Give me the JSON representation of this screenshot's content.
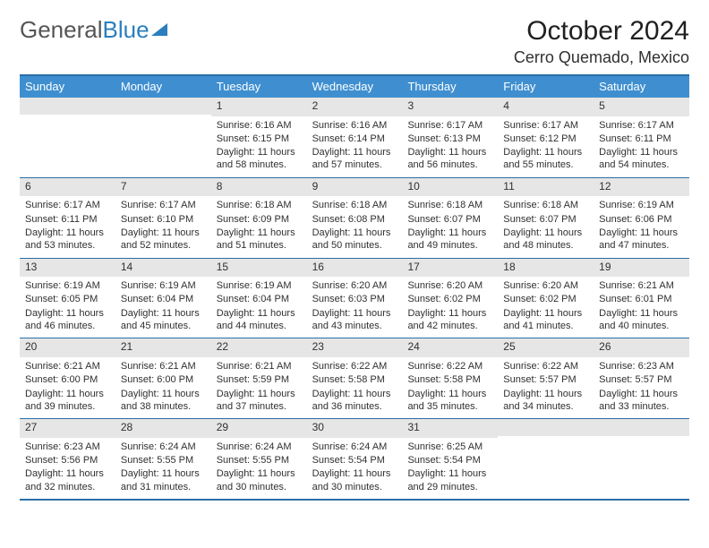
{
  "logo": {
    "part1": "General",
    "part2": "Blue"
  },
  "title": "October 2024",
  "location": "Cerro Quemado, Mexico",
  "colors": {
    "header_bg": "#3f8fd0",
    "border": "#2a6ea8",
    "daynum_bg": "#e6e6e6",
    "text": "#303030"
  },
  "fonts": {
    "title_size": 30,
    "location_size": 18,
    "header_size": 13,
    "body_size": 11
  },
  "dow": [
    "Sunday",
    "Monday",
    "Tuesday",
    "Wednesday",
    "Thursday",
    "Friday",
    "Saturday"
  ],
  "weeks": [
    [
      null,
      null,
      {
        "n": "1",
        "sr": "Sunrise: 6:16 AM",
        "ss": "Sunset: 6:15 PM",
        "dl": "Daylight: 11 hours and 58 minutes."
      },
      {
        "n": "2",
        "sr": "Sunrise: 6:16 AM",
        "ss": "Sunset: 6:14 PM",
        "dl": "Daylight: 11 hours and 57 minutes."
      },
      {
        "n": "3",
        "sr": "Sunrise: 6:17 AM",
        "ss": "Sunset: 6:13 PM",
        "dl": "Daylight: 11 hours and 56 minutes."
      },
      {
        "n": "4",
        "sr": "Sunrise: 6:17 AM",
        "ss": "Sunset: 6:12 PM",
        "dl": "Daylight: 11 hours and 55 minutes."
      },
      {
        "n": "5",
        "sr": "Sunrise: 6:17 AM",
        "ss": "Sunset: 6:11 PM",
        "dl": "Daylight: 11 hours and 54 minutes."
      }
    ],
    [
      {
        "n": "6",
        "sr": "Sunrise: 6:17 AM",
        "ss": "Sunset: 6:11 PM",
        "dl": "Daylight: 11 hours and 53 minutes."
      },
      {
        "n": "7",
        "sr": "Sunrise: 6:17 AM",
        "ss": "Sunset: 6:10 PM",
        "dl": "Daylight: 11 hours and 52 minutes."
      },
      {
        "n": "8",
        "sr": "Sunrise: 6:18 AM",
        "ss": "Sunset: 6:09 PM",
        "dl": "Daylight: 11 hours and 51 minutes."
      },
      {
        "n": "9",
        "sr": "Sunrise: 6:18 AM",
        "ss": "Sunset: 6:08 PM",
        "dl": "Daylight: 11 hours and 50 minutes."
      },
      {
        "n": "10",
        "sr": "Sunrise: 6:18 AM",
        "ss": "Sunset: 6:07 PM",
        "dl": "Daylight: 11 hours and 49 minutes."
      },
      {
        "n": "11",
        "sr": "Sunrise: 6:18 AM",
        "ss": "Sunset: 6:07 PM",
        "dl": "Daylight: 11 hours and 48 minutes."
      },
      {
        "n": "12",
        "sr": "Sunrise: 6:19 AM",
        "ss": "Sunset: 6:06 PM",
        "dl": "Daylight: 11 hours and 47 minutes."
      }
    ],
    [
      {
        "n": "13",
        "sr": "Sunrise: 6:19 AM",
        "ss": "Sunset: 6:05 PM",
        "dl": "Daylight: 11 hours and 46 minutes."
      },
      {
        "n": "14",
        "sr": "Sunrise: 6:19 AM",
        "ss": "Sunset: 6:04 PM",
        "dl": "Daylight: 11 hours and 45 minutes."
      },
      {
        "n": "15",
        "sr": "Sunrise: 6:19 AM",
        "ss": "Sunset: 6:04 PM",
        "dl": "Daylight: 11 hours and 44 minutes."
      },
      {
        "n": "16",
        "sr": "Sunrise: 6:20 AM",
        "ss": "Sunset: 6:03 PM",
        "dl": "Daylight: 11 hours and 43 minutes."
      },
      {
        "n": "17",
        "sr": "Sunrise: 6:20 AM",
        "ss": "Sunset: 6:02 PM",
        "dl": "Daylight: 11 hours and 42 minutes."
      },
      {
        "n": "18",
        "sr": "Sunrise: 6:20 AM",
        "ss": "Sunset: 6:02 PM",
        "dl": "Daylight: 11 hours and 41 minutes."
      },
      {
        "n": "19",
        "sr": "Sunrise: 6:21 AM",
        "ss": "Sunset: 6:01 PM",
        "dl": "Daylight: 11 hours and 40 minutes."
      }
    ],
    [
      {
        "n": "20",
        "sr": "Sunrise: 6:21 AM",
        "ss": "Sunset: 6:00 PM",
        "dl": "Daylight: 11 hours and 39 minutes."
      },
      {
        "n": "21",
        "sr": "Sunrise: 6:21 AM",
        "ss": "Sunset: 6:00 PM",
        "dl": "Daylight: 11 hours and 38 minutes."
      },
      {
        "n": "22",
        "sr": "Sunrise: 6:21 AM",
        "ss": "Sunset: 5:59 PM",
        "dl": "Daylight: 11 hours and 37 minutes."
      },
      {
        "n": "23",
        "sr": "Sunrise: 6:22 AM",
        "ss": "Sunset: 5:58 PM",
        "dl": "Daylight: 11 hours and 36 minutes."
      },
      {
        "n": "24",
        "sr": "Sunrise: 6:22 AM",
        "ss": "Sunset: 5:58 PM",
        "dl": "Daylight: 11 hours and 35 minutes."
      },
      {
        "n": "25",
        "sr": "Sunrise: 6:22 AM",
        "ss": "Sunset: 5:57 PM",
        "dl": "Daylight: 11 hours and 34 minutes."
      },
      {
        "n": "26",
        "sr": "Sunrise: 6:23 AM",
        "ss": "Sunset: 5:57 PM",
        "dl": "Daylight: 11 hours and 33 minutes."
      }
    ],
    [
      {
        "n": "27",
        "sr": "Sunrise: 6:23 AM",
        "ss": "Sunset: 5:56 PM",
        "dl": "Daylight: 11 hours and 32 minutes."
      },
      {
        "n": "28",
        "sr": "Sunrise: 6:24 AM",
        "ss": "Sunset: 5:55 PM",
        "dl": "Daylight: 11 hours and 31 minutes."
      },
      {
        "n": "29",
        "sr": "Sunrise: 6:24 AM",
        "ss": "Sunset: 5:55 PM",
        "dl": "Daylight: 11 hours and 30 minutes."
      },
      {
        "n": "30",
        "sr": "Sunrise: 6:24 AM",
        "ss": "Sunset: 5:54 PM",
        "dl": "Daylight: 11 hours and 30 minutes."
      },
      {
        "n": "31",
        "sr": "Sunrise: 6:25 AM",
        "ss": "Sunset: 5:54 PM",
        "dl": "Daylight: 11 hours and 29 minutes."
      },
      null,
      null
    ]
  ]
}
